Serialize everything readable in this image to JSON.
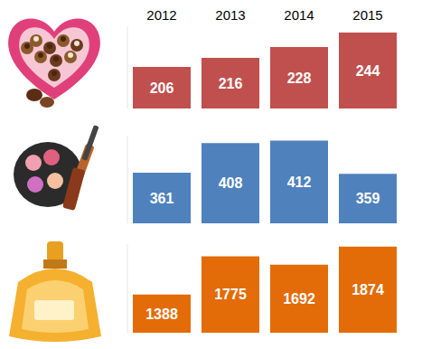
{
  "chart_data": [
    {
      "type": "bar",
      "categories": [
        "2012",
        "2013",
        "2014",
        "2015"
      ],
      "values": [
        206,
        216,
        228,
        244
      ],
      "color": "#c0504d",
      "ylim": [
        160,
        250
      ],
      "data_labels": true,
      "tick_labels": "x"
    },
    {
      "type": "bar",
      "categories": [
        "2012",
        "2013",
        "2014",
        "2015"
      ],
      "values": [
        361,
        408,
        412,
        359
      ],
      "color": "#4f81bd",
      "ylim": [
        280,
        420
      ],
      "data_labels": true,
      "tick_labels": false
    },
    {
      "type": "bar",
      "categories": [
        "2012",
        "2013",
        "2014",
        "2015"
      ],
      "values": [
        1388,
        1775,
        1692,
        1874
      ],
      "color": "#e36c09",
      "ylim": [
        1000,
        1900
      ],
      "data_labels": true,
      "tick_labels": false
    }
  ]
}
